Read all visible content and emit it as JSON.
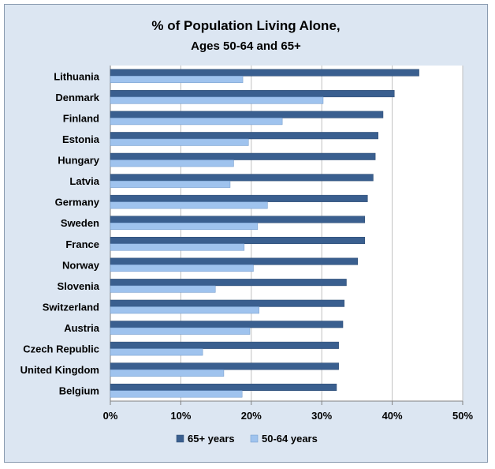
{
  "chart_data": {
    "type": "bar",
    "orientation": "horizontal",
    "title": "% of Population  Living Alone,",
    "subtitle": "Ages 50-64 and 65+",
    "categories": [
      "Lithuania",
      "Denmark",
      "Finland",
      "Estonia",
      "Hungary",
      "Latvia",
      "Germany",
      "Sweden",
      "France",
      "Norway",
      "Slovenia",
      "Switzerland",
      "Austria",
      "Czech Republic",
      "United Kingdom",
      "Belgium"
    ],
    "series": [
      {
        "name": "65+ years",
        "color": "#3a5f8f",
        "values": [
          43.8,
          40.3,
          38.7,
          38.0,
          37.6,
          37.3,
          36.5,
          36.1,
          36.1,
          35.1,
          33.5,
          33.2,
          33.0,
          32.4,
          32.4,
          32.1
        ]
      },
      {
        "name": "50-64 years",
        "color": "#9fc3ee",
        "values": [
          18.8,
          30.2,
          24.4,
          19.6,
          17.5,
          17.0,
          22.3,
          20.9,
          19.0,
          20.3,
          14.9,
          21.1,
          19.8,
          13.1,
          16.1,
          18.7
        ]
      }
    ],
    "xlim": [
      0,
      50
    ],
    "xticks": [
      0,
      10,
      20,
      30,
      40,
      50
    ],
    "xtick_labels": [
      "0%",
      "10%",
      "20%",
      "30%",
      "40%",
      "50%"
    ],
    "grid": "vertical",
    "legend": "bottom"
  }
}
